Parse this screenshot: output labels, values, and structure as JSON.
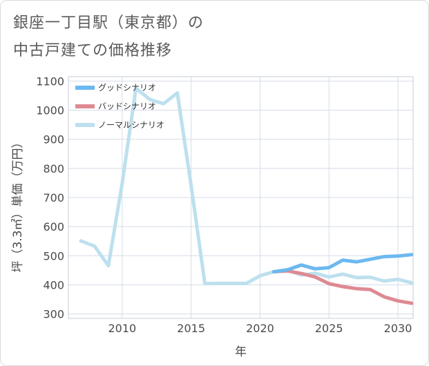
{
  "title_lines": [
    "銀座一丁目駅（東京都）の",
    "中古戸建ての価格推移"
  ],
  "colors": {
    "good": "#6cb8f0",
    "bad": "#de8a92",
    "normal": "#bde0ee",
    "grid": "#d4dce8",
    "text": "#4a4a4a"
  },
  "chart_data": {
    "type": "line",
    "title": "銀座一丁目駅（東京都）の中古戸建ての価格推移",
    "xlabel": "年",
    "ylabel": "坪（3.3㎡）単価（万円）",
    "xlim": [
      2006.1,
      2031.1
    ],
    "ylim": [
      285,
      1115
    ],
    "xticks": [
      2010,
      2015,
      2020,
      2025,
      2030
    ],
    "yticks": [
      300,
      400,
      500,
      600,
      700,
      800,
      900,
      1000,
      1100
    ],
    "x_tick_labels": [
      "2010",
      "2015",
      "2020",
      "2025",
      "2030"
    ],
    "y_tick_labels": [
      "300",
      "400",
      "500",
      "600",
      "700",
      "800",
      "900",
      "1000",
      "1100"
    ],
    "legend_position": "top-left",
    "series": [
      {
        "name": "グッドシナリオ",
        "color_key": "good",
        "x": [
          2021,
          2022,
          2023,
          2024,
          2025,
          2026,
          2027,
          2028,
          2029,
          2030,
          2031
        ],
        "values": [
          445,
          452,
          468,
          455,
          459,
          485,
          479,
          488,
          497,
          499,
          504
        ]
      },
      {
        "name": "バッドシナリオ",
        "color_key": "bad",
        "x": [
          2021,
          2022,
          2023,
          2024,
          2025,
          2026,
          2027,
          2028,
          2029,
          2030,
          2031
        ],
        "values": [
          445,
          448,
          439,
          427,
          404,
          394,
          387,
          384,
          359,
          345,
          337
        ]
      },
      {
        "name": "ノーマルシナリオ",
        "color_key": "normal",
        "x": [
          2007,
          2008,
          2009,
          2010,
          2011,
          2012,
          2013,
          2014,
          2015,
          2016,
          2017,
          2018,
          2019,
          2020,
          2021,
          2022,
          2023,
          2024,
          2025,
          2026,
          2027,
          2028,
          2029,
          2030,
          2031
        ],
        "values": [
          551,
          533,
          466,
          748,
          1075,
          1037,
          1022,
          1059,
          742,
          404,
          405,
          405,
          405,
          431,
          445,
          450,
          434,
          440,
          427,
          437,
          425,
          426,
          413,
          419,
          407
        ]
      }
    ]
  }
}
